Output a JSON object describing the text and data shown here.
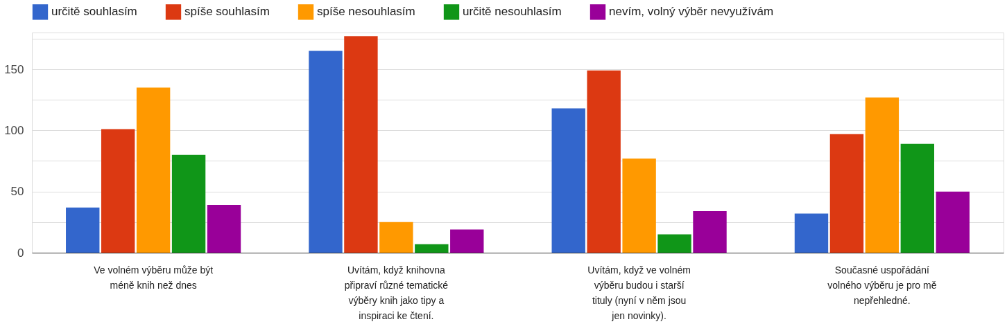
{
  "chart_data": {
    "type": "bar",
    "categories": [
      "Ve volném výběru může být méně knih než dnes",
      "Uvítám, když knihovna připraví různé tematické výběry knih jako tipy a inspiraci ke čtení.",
      "Uvítám, když ve volném výběru budou i starší tituly (nyní v něm jsou jen novinky).",
      "Současné uspořádání volného výběru je pro mě nepřehledné."
    ],
    "series": [
      {
        "name": "určitě souhlasím",
        "color": "#3366cc",
        "values": [
          37,
          165,
          118,
          32
        ]
      },
      {
        "name": "spíše souhlasím",
        "color": "#dc3912",
        "values": [
          101,
          177,
          149,
          97
        ]
      },
      {
        "name": "spíše nesouhlasím",
        "color": "#ff9900",
        "values": [
          135,
          25,
          77,
          127
        ]
      },
      {
        "name": "určitě nesouhlasím",
        "color": "#109618",
        "values": [
          80,
          7,
          15,
          89
        ]
      },
      {
        "name": "nevím, volný výběr nevyužívám",
        "color": "#990099",
        "values": [
          39,
          19,
          34,
          50
        ]
      }
    ],
    "ylim": [
      0,
      180
    ],
    "yticks": [
      0,
      {
        "value": 25,
        "label": null
      },
      50,
      {
        "value": 75,
        "label": null
      },
      100,
      {
        "value": 125,
        "label": null
      },
      150,
      {
        "value": 175,
        "label": null
      }
    ],
    "grid": "y",
    "legend": "top"
  }
}
